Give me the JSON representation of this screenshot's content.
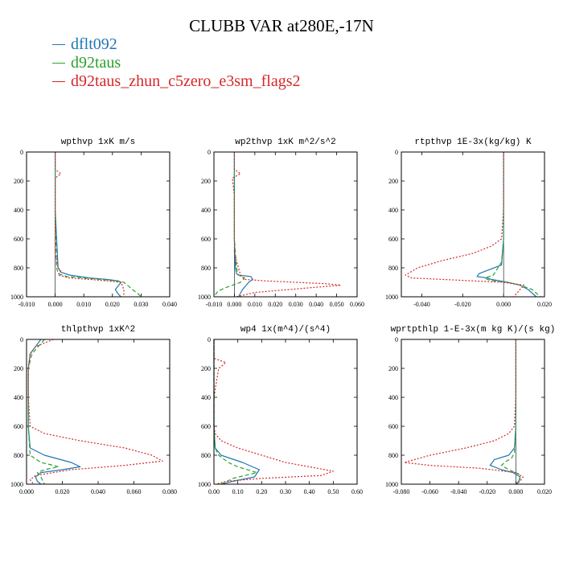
{
  "title": "CLUBB VAR at280E,-17N",
  "legend": [
    {
      "name": "dflt092",
      "color": "#1f77b4",
      "dash": "solid"
    },
    {
      "name": "d92taus",
      "color": "#2ca02c",
      "dash": "dashed"
    },
    {
      "name": "d92taus_zhun_c5zero_e3sm_flags2",
      "color": "#d62728",
      "dash": "dotted"
    }
  ],
  "chart_data": [
    {
      "type": "line",
      "title": "wpthvp  1xK m/s",
      "xlim": [
        -0.01,
        0.04
      ],
      "ylim": [
        0,
        1000
      ],
      "y_inverted": true,
      "xticks": [
        "-0.010",
        "0.000",
        "0.010",
        "0.020",
        "0.030",
        "0.040"
      ],
      "yticks": [
        "0",
        "200",
        "400",
        "600",
        "800",
        "1000"
      ],
      "series": [
        {
          "name": "dflt092",
          "x": [
            0,
            0,
            0,
            0,
            0.0005,
            0.001,
            0.002,
            0.005,
            0.012,
            0.018,
            0.022,
            0.023,
            0.021,
            0.022,
            0.023
          ],
          "y": [
            0,
            100,
            200,
            400,
            600,
            800,
            830,
            850,
            870,
            880,
            890,
            900,
            950,
            980,
            1000
          ]
        },
        {
          "name": "d92taus",
          "x": [
            0,
            0,
            0,
            0,
            0,
            0.0005,
            0.001,
            0.004,
            0.01,
            0.016,
            0.021,
            0.024,
            0.027,
            0.029,
            0.03
          ],
          "y": [
            0,
            100,
            150,
            180,
            400,
            800,
            840,
            860,
            870,
            880,
            890,
            900,
            950,
            980,
            1000
          ]
        },
        {
          "name": "d92taus_zhun_c5zero_e3sm_flags2",
          "x": [
            0,
            0,
            0.002,
            0,
            0,
            0,
            0.001,
            0.002,
            0.001,
            0.005,
            0.012,
            0.018,
            0.023,
            0.024,
            0.024
          ],
          "y": [
            0,
            120,
            150,
            180,
            300,
            700,
            800,
            820,
            850,
            870,
            880,
            890,
            900,
            950,
            1000
          ]
        }
      ]
    },
    {
      "type": "line",
      "title": "wp2thvp  1xK m^2/s^2",
      "xlim": [
        -0.01,
        0.06
      ],
      "ylim": [
        0,
        1000
      ],
      "y_inverted": true,
      "xticks": [
        "-0.010",
        "0.000",
        "0.010",
        "0.020",
        "0.030",
        "0.040",
        "0.050",
        "0.060"
      ],
      "yticks": [
        "0",
        "200",
        "400",
        "600",
        "800",
        "1000"
      ],
      "series": [
        {
          "name": "dflt092",
          "x": [
            0,
            0,
            0,
            0,
            0.0005,
            0.001,
            0.002,
            0.008,
            0.009,
            0.007,
            0.004,
            0.002
          ],
          "y": [
            0,
            200,
            400,
            600,
            800,
            840,
            850,
            860,
            880,
            900,
            950,
            1000
          ]
        },
        {
          "name": "d92taus",
          "x": [
            0,
            0,
            0,
            0,
            0.001,
            0.002,
            0.005,
            0.003,
            -0.003,
            -0.008,
            -0.01
          ],
          "y": [
            0,
            200,
            400,
            600,
            800,
            850,
            870,
            900,
            930,
            960,
            1000
          ]
        },
        {
          "name": "d92taus_zhun_c5zero_e3sm_flags2",
          "x": [
            0,
            0,
            0.003,
            -0.001,
            0,
            0,
            0.002,
            0.003,
            0.005,
            0.015,
            0.03,
            0.045,
            0.052,
            0.035,
            0.01,
            0.001
          ],
          "y": [
            0,
            120,
            150,
            180,
            300,
            700,
            800,
            850,
            880,
            890,
            900,
            910,
            920,
            940,
            970,
            1000
          ]
        }
      ]
    },
    {
      "type": "line",
      "title": "rtpthvp  1E-3x(kg/kg) K",
      "xlim": [
        -0.05,
        0.02
      ],
      "ylim": [
        0,
        1000
      ],
      "y_inverted": true,
      "xticks": [
        "-0.040",
        "-0.020",
        "0.000",
        "0.020"
      ],
      "yticks": [
        "0",
        "200",
        "400",
        "600",
        "800",
        "1000"
      ],
      "series": [
        {
          "name": "dflt092",
          "x": [
            0,
            0,
            0,
            0,
            -0.001,
            -0.012,
            -0.013,
            -0.008,
            -0.006,
            0.002,
            0.008,
            0.012,
            0.016
          ],
          "y": [
            0,
            200,
            400,
            600,
            780,
            840,
            860,
            870,
            880,
            900,
            920,
            950,
            1000
          ]
        },
        {
          "name": "d92taus",
          "x": [
            0,
            0,
            0,
            0,
            -0.001,
            -0.005,
            -0.009,
            -0.008,
            -0.005,
            0.002,
            0.008,
            0.014,
            0.018
          ],
          "y": [
            0,
            200,
            400,
            600,
            760,
            850,
            870,
            880,
            890,
            900,
            920,
            950,
            1000
          ]
        },
        {
          "name": "d92taus_zhun_c5zero_e3sm_flags2",
          "x": [
            0,
            0,
            0,
            -0.001,
            -0.006,
            -0.015,
            -0.03,
            -0.042,
            -0.048,
            -0.045,
            -0.03,
            0,
            0.01,
            0.008,
            0.005
          ],
          "y": [
            0,
            200,
            400,
            600,
            650,
            700,
            750,
            800,
            850,
            870,
            880,
            900,
            920,
            950,
            1000
          ]
        }
      ]
    },
    {
      "type": "line",
      "title": "thlpthvp  1xK^2",
      "xlim": [
        0.0,
        0.08
      ],
      "ylim": [
        0,
        1000
      ],
      "y_inverted": true,
      "xticks": [
        "0.000",
        "0.020",
        "0.040",
        "0.060",
        "0.080"
      ],
      "yticks": [
        "0",
        "200",
        "400",
        "600",
        "800",
        "1000"
      ],
      "series": [
        {
          "name": "dflt092",
          "x": [
            0.008,
            0.002,
            0.001,
            0.001,
            0.001,
            0.002,
            0.01,
            0.025,
            0.03,
            0.02,
            0.008,
            0.005,
            0.006,
            0.008
          ],
          "y": [
            0,
            100,
            200,
            400,
            600,
            750,
            800,
            850,
            880,
            900,
            920,
            950,
            980,
            1000
          ]
        },
        {
          "name": "d92taus",
          "x": [
            0.01,
            0.003,
            0.001,
            0.001,
            0.001,
            0.002,
            0.008,
            0.015,
            0.018,
            0.01,
            0.006,
            0.008,
            0.01
          ],
          "y": [
            0,
            100,
            200,
            400,
            600,
            800,
            850,
            870,
            880,
            900,
            920,
            950,
            1000
          ]
        },
        {
          "name": "d92taus_zhun_c5zero_e3sm_flags2",
          "x": [
            0.015,
            0.005,
            0.002,
            0.001,
            0.001,
            0.002,
            0.01,
            0.03,
            0.055,
            0.07,
            0.076,
            0.055,
            0.025,
            0.005,
            0.002,
            0.004
          ],
          "y": [
            0,
            50,
            100,
            200,
            400,
            600,
            650,
            700,
            750,
            800,
            840,
            870,
            900,
            940,
            970,
            1000
          ]
        }
      ]
    },
    {
      "type": "line",
      "title": "wp4  1x(m^4)/(s^4)",
      "xlim": [
        0.0,
        0.6
      ],
      "ylim": [
        0,
        1000
      ],
      "y_inverted": true,
      "xticks": [
        "0.00",
        "0.10",
        "0.20",
        "0.30",
        "0.40",
        "0.50",
        "0.60"
      ],
      "yticks": [
        "0",
        "200",
        "400",
        "600",
        "800",
        "1000"
      ],
      "series": [
        {
          "name": "dflt092",
          "x": [
            0,
            0,
            0,
            0,
            0.005,
            0.03,
            0.12,
            0.19,
            0.17,
            0.08,
            0.03
          ],
          "y": [
            0,
            200,
            400,
            600,
            750,
            800,
            850,
            900,
            950,
            980,
            1000
          ]
        },
        {
          "name": "d92taus",
          "x": [
            0,
            0,
            0,
            0,
            0.005,
            0.02,
            0.06,
            0.1,
            0.18,
            0.08,
            0.03
          ],
          "y": [
            0,
            200,
            400,
            600,
            750,
            800,
            850,
            880,
            920,
            960,
            1000
          ]
        },
        {
          "name": "d92taus_zhun_c5zero_e3sm_flags2",
          "x": [
            0,
            0,
            0.05,
            0.02,
            0,
            0,
            0.005,
            0.03,
            0.1,
            0.3,
            0.5,
            0.45,
            0.2,
            0.05,
            0.01
          ],
          "y": [
            0,
            130,
            160,
            200,
            400,
            600,
            650,
            700,
            750,
            850,
            910,
            940,
            960,
            980,
            1000
          ]
        }
      ]
    },
    {
      "type": "line",
      "title": "wprtpthlp  1-E-3x(m kg K)/(s kg)",
      "xlim": [
        -0.08,
        0.02
      ],
      "ylim": [
        0,
        1000
      ],
      "y_inverted": true,
      "xticks": [
        "-0.080",
        "-0.060",
        "-0.040",
        "-0.020",
        "0.000",
        "0.020"
      ],
      "yticks": [
        "0",
        "200",
        "400",
        "600",
        "800",
        "1000"
      ],
      "series": [
        {
          "name": "dflt092",
          "x": [
            0,
            0,
            0,
            0,
            -0.001,
            -0.005,
            -0.015,
            -0.018,
            -0.01,
            -0.002,
            0.003,
            0.002,
            0
          ],
          "y": [
            0,
            200,
            400,
            600,
            750,
            800,
            830,
            870,
            900,
            920,
            950,
            980,
            1000
          ]
        },
        {
          "name": "d92taus",
          "x": [
            0,
            0,
            0,
            0,
            -0.001,
            -0.003,
            -0.008,
            -0.01,
            -0.005,
            0.002,
            0.003,
            0.001
          ],
          "y": [
            0,
            200,
            400,
            600,
            780,
            820,
            850,
            870,
            900,
            930,
            960,
            1000
          ]
        },
        {
          "name": "d92taus_zhun_c5zero_e3sm_flags2",
          "x": [
            0,
            0,
            0,
            -0.001,
            -0.005,
            -0.015,
            -0.035,
            -0.06,
            -0.078,
            -0.06,
            -0.025,
            0,
            0.005,
            0.003,
            0
          ],
          "y": [
            0,
            200,
            400,
            600,
            650,
            700,
            750,
            800,
            850,
            870,
            890,
            920,
            950,
            980,
            1000
          ]
        }
      ]
    }
  ]
}
